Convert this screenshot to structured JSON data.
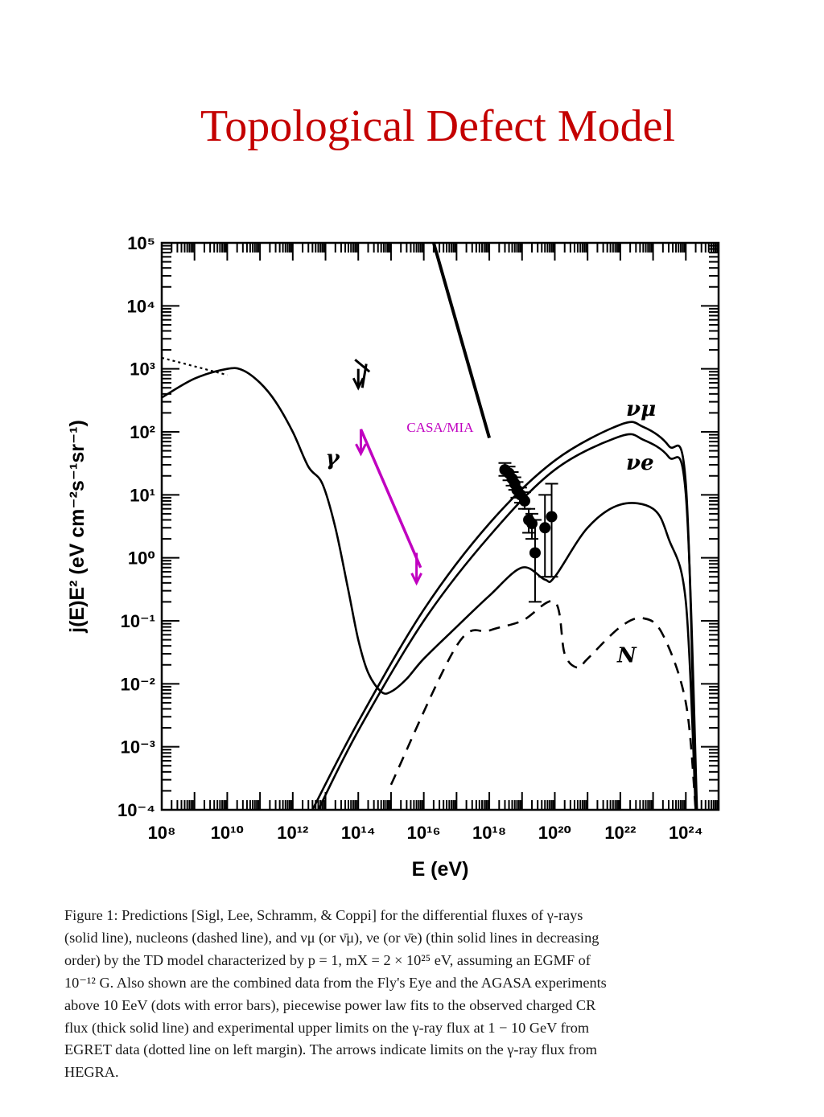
{
  "slide": {
    "title": "Topological Defect Model"
  },
  "chart_data": {
    "type": "line",
    "xscale": "log",
    "yscale": "log",
    "xlim": [
      100000000.0,
      1e+25
    ],
    "ylim": [
      0.0001,
      100000.0
    ],
    "xlabel": "E (eV)",
    "ylabel": "j(E)E² (eV cm⁻²s⁻¹sr⁻¹)",
    "x_tick_labels": [
      "10⁸",
      "10¹⁰",
      "10¹²",
      "10¹⁴",
      "10¹⁶",
      "10¹⁸",
      "10²⁰",
      "10²²",
      "10²⁴"
    ],
    "y_tick_labels": [
      "10⁻⁴",
      "10⁻³",
      "10⁻²",
      "10⁻¹",
      "10⁰",
      "10¹",
      "10²",
      "10³",
      "10⁴",
      "10⁵"
    ],
    "annotations": [
      {
        "text": "γ",
        "x": 10000000000000.0,
        "y": 30
      },
      {
        "text": "νμ",
        "x": 1.5e+22,
        "y": 180
      },
      {
        "text": "νe",
        "x": 1.5e+22,
        "y": 25
      },
      {
        "text": "N",
        "x": 8e+21,
        "y": 0.022
      },
      {
        "text": "CASA/MIA",
        "x": 3000000000000000.0,
        "y": 100
      }
    ],
    "series": [
      {
        "style": "solid",
        "points": [
          [
            100000000.0,
            350
          ],
          [
            1000000000.0,
            700
          ],
          [
            10000000000.0,
            1000
          ],
          [
            30000000000.0,
            950
          ],
          [
            100000000000.0,
            600
          ],
          [
            300000000000.0,
            300
          ],
          [
            1000000000000.0,
            100
          ],
          [
            3000000000000.0,
            28
          ],
          [
            8000000000000.0,
            15
          ],
          [
            20000000000000.0,
            3
          ],
          [
            50000000000000.0,
            0.3
          ],
          [
            100000000000000.0,
            0.05
          ],
          [
            200000000000000.0,
            0.015
          ],
          [
            500000000000000.0,
            0.0075
          ],
          [
            1000000000000000.0,
            0.0075
          ],
          [
            3000000000000000.0,
            0.012
          ],
          [
            1e+16,
            0.025
          ],
          [
            1e+17,
            0.08
          ],
          [
            1e+18,
            0.25
          ],
          [
            1e+19,
            0.7
          ],
          [
            5e+19,
            0.45
          ],
          [
            1e+20,
            0.5
          ],
          [
            1e+21,
            3
          ],
          [
            1e+22,
            7
          ],
          [
            1e+23,
            6
          ],
          [
            3e+23,
            2
          ],
          [
            1e+24,
            0.2
          ],
          [
            2e+24,
            0.0001
          ]
        ]
      },
      {
        "style": "solid",
        "points": [
          [
            4000000000000.0,
            0.0001
          ],
          [
            100000000000000.0,
            0.0025
          ],
          [
            1e+16,
            0.15
          ],
          [
            1e+18,
            3.5
          ],
          [
            1e+20,
            35
          ],
          [
            1e+22,
            130
          ],
          [
            5e+22,
            120
          ],
          [
            3e+23,
            60
          ],
          [
            1e+24,
            15
          ],
          [
            2e+24,
            0.0001
          ]
        ]
      },
      {
        "style": "solid",
        "points": [
          [
            6000000000000.0,
            0.0001
          ],
          [
            100000000000000.0,
            0.0018
          ],
          [
            1e+16,
            0.1
          ],
          [
            1e+18,
            2.2
          ],
          [
            1e+20,
            25
          ],
          [
            1e+22,
            85
          ],
          [
            5e+22,
            75
          ],
          [
            3e+23,
            40
          ],
          [
            1e+24,
            10
          ],
          [
            2.2e+24,
            0.0001
          ]
        ]
      },
      {
        "style": "dashed",
        "points": [
          [
            1000000000000000.0,
            0.00025
          ],
          [
            1e+17,
            0.04
          ],
          [
            1e+18,
            0.07
          ],
          [
            1e+19,
            0.1
          ],
          [
            1e+20,
            0.2
          ],
          [
            2e+20,
            0.03
          ],
          [
            5e+20,
            0.018
          ],
          [
            1e+21,
            0.025
          ],
          [
            1e+22,
            0.08
          ],
          [
            5e+22,
            0.11
          ],
          [
            2e+23,
            0.06
          ],
          [
            1e+24,
            0.005
          ],
          [
            2e+24,
            0.0001
          ]
        ]
      },
      {
        "style": "thick",
        "points": [
          [
            2e+16,
            100000
          ],
          [
            1e+18,
            80
          ]
        ]
      },
      {
        "style": "dotted",
        "points": [
          [
            100000000.0,
            1500
          ],
          [
            10000000000.0,
            800
          ]
        ]
      }
    ],
    "data_points": [
      {
        "x": 3e+18,
        "y": 25,
        "ylo": 20,
        "yhi": 32
      },
      {
        "x": 4e+18,
        "y": 22,
        "ylo": 17,
        "yhi": 28
      },
      {
        "x": 5e+18,
        "y": 18,
        "ylo": 14,
        "yhi": 23
      },
      {
        "x": 6e+18,
        "y": 15,
        "ylo": 12,
        "yhi": 19
      },
      {
        "x": 7e+18,
        "y": 12,
        "ylo": 9,
        "yhi": 16
      },
      {
        "x": 9e+18,
        "y": 10,
        "ylo": 7.5,
        "yhi": 13
      },
      {
        "x": 1.2e+19,
        "y": 8,
        "ylo": 6,
        "yhi": 11
      },
      {
        "x": 1.6e+19,
        "y": 4,
        "ylo": 2.5,
        "yhi": 6
      },
      {
        "x": 2e+19,
        "y": 3.5,
        "ylo": 2,
        "yhi": 5
      },
      {
        "x": 2.5e+19,
        "y": 1.2,
        "ylo": 0.2,
        "yhi": 4
      },
      {
        "x": 5e+19,
        "y": 3,
        "ylo": 0.5,
        "yhi": 10
      },
      {
        "x": 8e+19,
        "y": 4.5,
        "ylo": 0.5,
        "yhi": 15
      }
    ],
    "arrows": [
      {
        "color": "#000000",
        "x": 100000000000000.0,
        "y_from": 1000,
        "y_to": 500
      },
      {
        "color": "#c000c0",
        "x": 120000000000000.0,
        "y_from": 110,
        "y_to": 45
      },
      {
        "color": "#c000c0",
        "x": 6000000000000000.0,
        "y_from": 1.2,
        "y_to": 0.4
      }
    ],
    "magenta_limit_line": [
      [
        120000000000000.0,
        110
      ],
      [
        8000000000000000.0,
        0.7
      ]
    ]
  },
  "caption": {
    "lines": [
      "Figure 1:  Predictions [Sigl, Lee, Schramm, & Coppi] for the differential fluxes of γ-rays",
      "(solid line), nucleons (dashed line), and νμ (or ν̄μ), νe (or ν̄e) (thin solid lines in decreasing",
      "order) by the TD model characterized by p = 1, mX = 2 × 10²⁵ eV, assuming an EGMF of",
      "10⁻¹² G. Also shown are the combined data from the Fly's Eye and the AGASA experiments",
      "above 10 EeV (dots with error bars), piecewise power law fits to the observed charged CR",
      "flux (thick solid line) and experimental upper limits on the γ-ray flux at 1 − 10 GeV from",
      "EGRET data (dotted line on left margin).  The arrows indicate limits on the γ-ray flux from",
      "HEGRA."
    ]
  }
}
